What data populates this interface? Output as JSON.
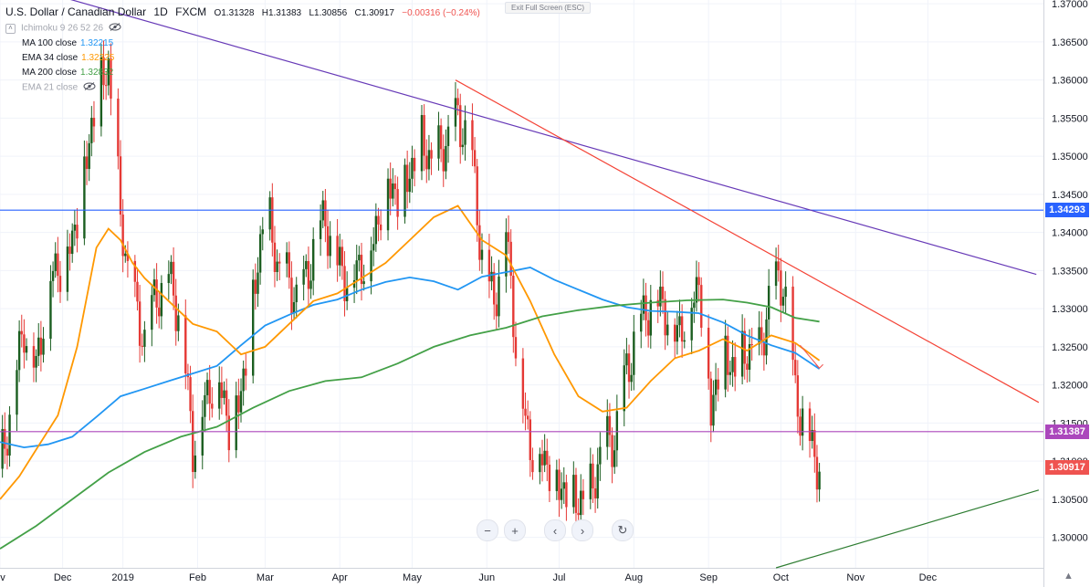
{
  "legend": {
    "title": "U.S. Dollar / Canadian Dollar",
    "interval": "1D",
    "source": "FXCM",
    "open": "O1.31328",
    "high": "H1.31383",
    "low": "L1.30856",
    "close": "C1.30917",
    "change": "−0.00316 (−0.24%)",
    "change_color": "#ef5350",
    "indicators": [
      {
        "label": "Ichimoku 9 26 52 26",
        "value": "",
        "color": "#a3a6af",
        "hidden": true
      },
      {
        "label": "MA 100 close",
        "value": "1.32215",
        "color": "#2196f3",
        "hidden": false
      },
      {
        "label": "EMA 34 close",
        "value": "1.32325",
        "color": "#ff9800",
        "hidden": false
      },
      {
        "label": "MA 200 close",
        "value": "1.32832",
        "color": "#43a047",
        "hidden": false
      },
      {
        "label": "EMA 21 close",
        "value": "",
        "color": "#a3a6af",
        "hidden": true
      }
    ]
  },
  "exit_fullscreen": "Exit Full Screen (ESC)",
  "price_tags": [
    {
      "label": "1.34293",
      "value": 1.34293,
      "color": "#2962ff"
    },
    {
      "label": "1.31387",
      "value": 1.31387,
      "color": "#ab47bc"
    },
    {
      "label": "1.30917",
      "value": 1.30917,
      "color": "#ef5350"
    }
  ],
  "nav_buttons": [
    {
      "name": "zoom-out-button",
      "glyph": "−"
    },
    {
      "name": "zoom-in-button",
      "glyph": "+"
    },
    {
      "name": "scroll-left-button",
      "glyph": "‹"
    },
    {
      "name": "scroll-right-button",
      "glyph": "›"
    },
    {
      "name": "reset-chart-button",
      "glyph": "↻"
    }
  ],
  "chart_data": {
    "type": "line",
    "title": "U.S. Dollar / Canadian Dollar, 1D, FXCM",
    "ylim": [
      1.296,
      1.3705
    ],
    "y_ticks": [
      "1.30000",
      "1.30500",
      "1.31000",
      "1.31500",
      "1.32000",
      "1.32500",
      "1.33000",
      "1.33500",
      "1.34000",
      "1.34500",
      "1.35000",
      "1.35500",
      "1.36000",
      "1.36500",
      "1.37000"
    ],
    "y_tick_values": [
      1.3,
      1.305,
      1.31,
      1.315,
      1.32,
      1.325,
      1.33,
      1.335,
      1.34,
      1.345,
      1.35,
      1.355,
      1.36,
      1.365,
      1.37
    ],
    "x_ticks": [
      "ov",
      "Dec",
      "2019",
      "Feb",
      "Mar",
      "Apr",
      "May",
      "Jun",
      "Jul",
      "Aug",
      "Sep",
      "Oct",
      "Nov",
      "Dec"
    ],
    "x_tick_days": [
      0,
      26,
      51,
      82,
      110,
      141,
      171,
      202,
      232,
      263,
      294,
      324,
      355,
      385
    ],
    "grid": true,
    "horizontal_levels": [
      {
        "value": 1.34293,
        "color": "#2962ff"
      },
      {
        "value": 1.31387,
        "color": "#ab47bc"
      }
    ],
    "series": [
      {
        "name": "MA 100 close",
        "color": "#2196f3",
        "x": [
          0,
          10,
          20,
          30,
          40,
          50,
          60,
          70,
          80,
          90,
          100,
          110,
          120,
          130,
          140,
          150,
          160,
          170,
          180,
          190,
          200,
          210,
          220,
          230,
          240,
          250,
          260,
          270,
          280,
          290,
          300,
          310,
          320,
          330,
          340
        ],
        "y": [
          1.3125,
          1.3118,
          1.3122,
          1.3132,
          1.3158,
          1.3185,
          1.3195,
          1.3205,
          1.3215,
          1.3225,
          1.3252,
          1.3278,
          1.3292,
          1.3305,
          1.3312,
          1.3325,
          1.3335,
          1.3341,
          1.3336,
          1.3325,
          1.3342,
          1.3348,
          1.3354,
          1.3338,
          1.3325,
          1.3312,
          1.3302,
          1.3297,
          1.3296,
          1.3294,
          1.3282,
          1.3265,
          1.3252,
          1.3242,
          1.3221
        ]
      },
      {
        "name": "EMA 34 close",
        "color": "#ff9800",
        "x": [
          0,
          8,
          16,
          24,
          32,
          40,
          45,
          50,
          55,
          60,
          70,
          80,
          90,
          100,
          110,
          120,
          130,
          140,
          150,
          160,
          170,
          180,
          190,
          200,
          210,
          220,
          230,
          240,
          250,
          260,
          270,
          280,
          290,
          300,
          310,
          320,
          330,
          340
        ],
        "y": [
          1.305,
          1.308,
          1.312,
          1.316,
          1.325,
          1.338,
          1.3405,
          1.339,
          1.336,
          1.334,
          1.331,
          1.328,
          1.327,
          1.324,
          1.325,
          1.328,
          1.331,
          1.332,
          1.334,
          1.336,
          1.339,
          1.342,
          1.3435,
          1.339,
          1.337,
          1.331,
          1.324,
          1.3185,
          1.3165,
          1.317,
          1.3205,
          1.3235,
          1.3245,
          1.326,
          1.3245,
          1.3265,
          1.3255,
          1.3232
        ]
      },
      {
        "name": "MA 200 close",
        "color": "#43a047",
        "x": [
          0,
          15,
          30,
          45,
          60,
          75,
          90,
          105,
          120,
          135,
          150,
          165,
          180,
          195,
          210,
          225,
          240,
          255,
          270,
          285,
          300,
          310,
          320,
          330,
          340
        ],
        "y": [
          1.2985,
          1.3015,
          1.305,
          1.3085,
          1.3112,
          1.3132,
          1.3145,
          1.317,
          1.3192,
          1.3205,
          1.321,
          1.3228,
          1.325,
          1.3265,
          1.3275,
          1.329,
          1.3298,
          1.3304,
          1.3308,
          1.3311,
          1.3312,
          1.3308,
          1.3302,
          1.3288,
          1.3283
        ]
      }
    ],
    "candle_closes": {
      "x": [
        0,
        5,
        10,
        15,
        20,
        25,
        30,
        35,
        40,
        45,
        50,
        55,
        60,
        65,
        70,
        75,
        80,
        85,
        90,
        95,
        100,
        105,
        110,
        115,
        120,
        125,
        130,
        135,
        140,
        145,
        150,
        155,
        160,
        165,
        170,
        175,
        180,
        185,
        190,
        195,
        200,
        205,
        210,
        215,
        220,
        225,
        230,
        235,
        240,
        245,
        250,
        255,
        260,
        265,
        270,
        275,
        280,
        285,
        290,
        295,
        300,
        305,
        310,
        315,
        320,
        325,
        330,
        335,
        340
      ],
      "y": [
        1.309,
        1.318,
        1.328,
        1.322,
        1.334,
        1.336,
        1.339,
        1.348,
        1.358,
        1.362,
        1.342,
        1.331,
        1.326,
        1.332,
        1.334,
        1.329,
        1.312,
        1.318,
        1.322,
        1.315,
        1.319,
        1.331,
        1.344,
        1.336,
        1.333,
        1.331,
        1.338,
        1.342,
        1.336,
        1.334,
        1.336,
        1.339,
        1.347,
        1.345,
        1.348,
        1.352,
        1.349,
        1.352,
        1.355,
        1.352,
        1.337,
        1.331,
        1.341,
        1.322,
        1.312,
        1.311,
        1.308,
        1.306,
        1.305,
        1.306,
        1.312,
        1.313,
        1.322,
        1.328,
        1.331,
        1.331,
        1.327,
        1.329,
        1.334,
        1.317,
        1.325,
        1.322,
        1.325,
        1.324,
        1.333,
        1.334,
        1.319,
        1.3139,
        1.3092
      ]
    },
    "trendlines": [
      {
        "color": "#673ab7",
        "from": [
          -20,
          1.375
        ],
        "to": [
          430,
          1.3345
        ]
      },
      {
        "color": "#f44336",
        "from": [
          189,
          1.36
        ],
        "to": [
          431,
          1.3177
        ]
      },
      {
        "color": "#2e7d32",
        "from": [
          322,
          1.296
        ],
        "to": [
          431,
          1.3062
        ]
      }
    ]
  }
}
